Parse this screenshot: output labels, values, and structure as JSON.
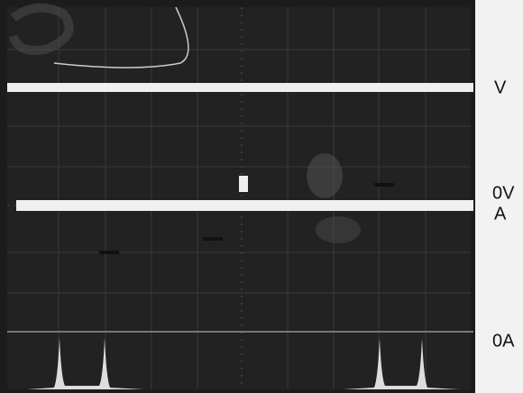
{
  "labels": {
    "voltage_trace": "V",
    "voltage_zero": "0V",
    "current_trace": "A",
    "current_zero": "0A"
  }
}
